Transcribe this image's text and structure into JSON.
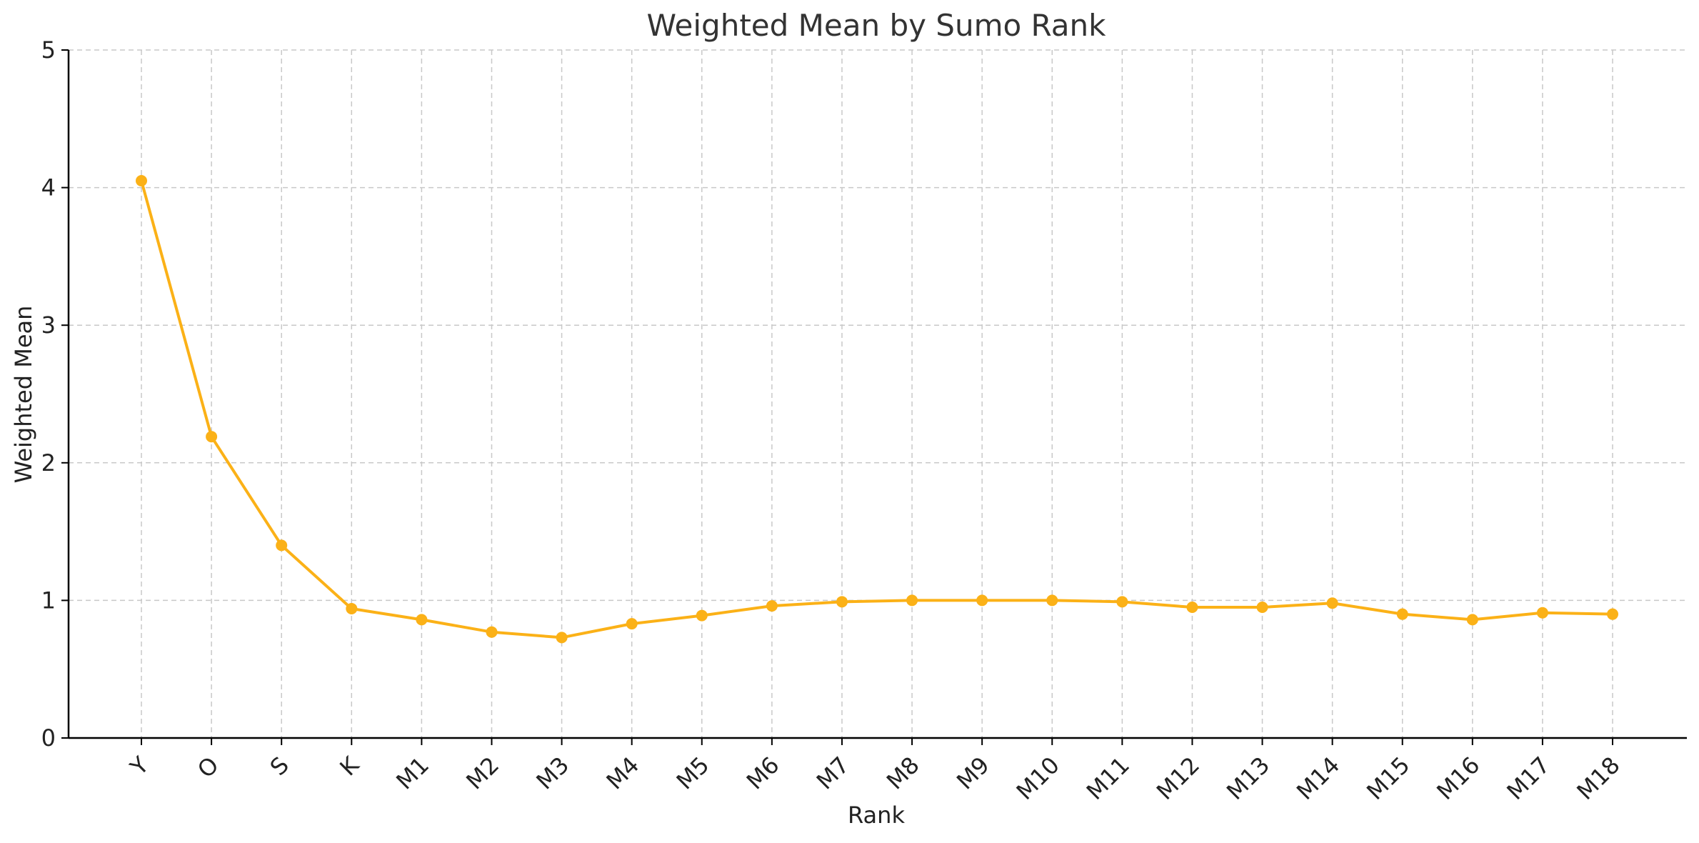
{
  "chart_data": {
    "type": "line",
    "title": "Weighted Mean by Sumo Rank",
    "xlabel": "Rank",
    "ylabel": "Weighted Mean",
    "categories": [
      "Y",
      "O",
      "S",
      "K",
      "M1",
      "M2",
      "M3",
      "M4",
      "M5",
      "M6",
      "M7",
      "M8",
      "M9",
      "M10",
      "M11",
      "M12",
      "M13",
      "M14",
      "M15",
      "M16",
      "M17",
      "M18"
    ],
    "series": [
      {
        "values": [
          4.05,
          2.19,
          1.4,
          0.94,
          0.86,
          0.77,
          0.73,
          0.83,
          0.89,
          0.96,
          0.99,
          1.0,
          1.0,
          1.0,
          0.99,
          0.95,
          0.95,
          0.98,
          0.9,
          0.86,
          0.91,
          0.9
        ],
        "color": "#FBB117",
        "marker": "circle"
      }
    ],
    "ylim": [
      0,
      5
    ],
    "yticks": [
      0,
      1,
      2,
      3,
      4,
      5
    ],
    "grid": true,
    "x_tick_rotation": 45
  }
}
